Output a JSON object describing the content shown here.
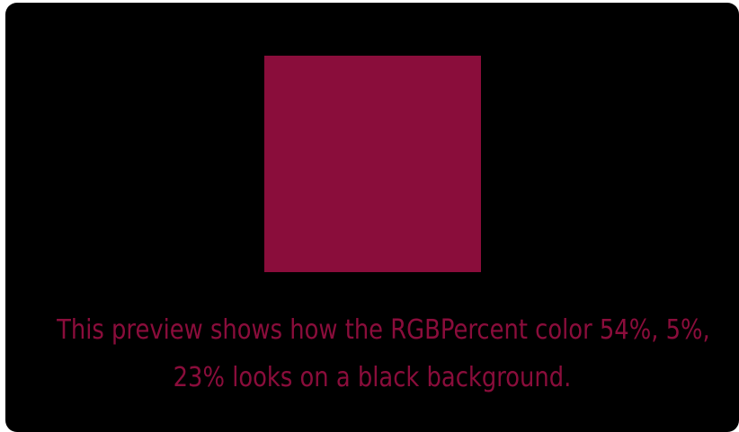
{
  "preview": {
    "color_hex": "#8a0d3b",
    "background_hex": "#000000",
    "caption_line1": "This preview shows how the RGBPercent color 54%, 5%,",
    "caption_line2": "23% looks on a black background."
  }
}
